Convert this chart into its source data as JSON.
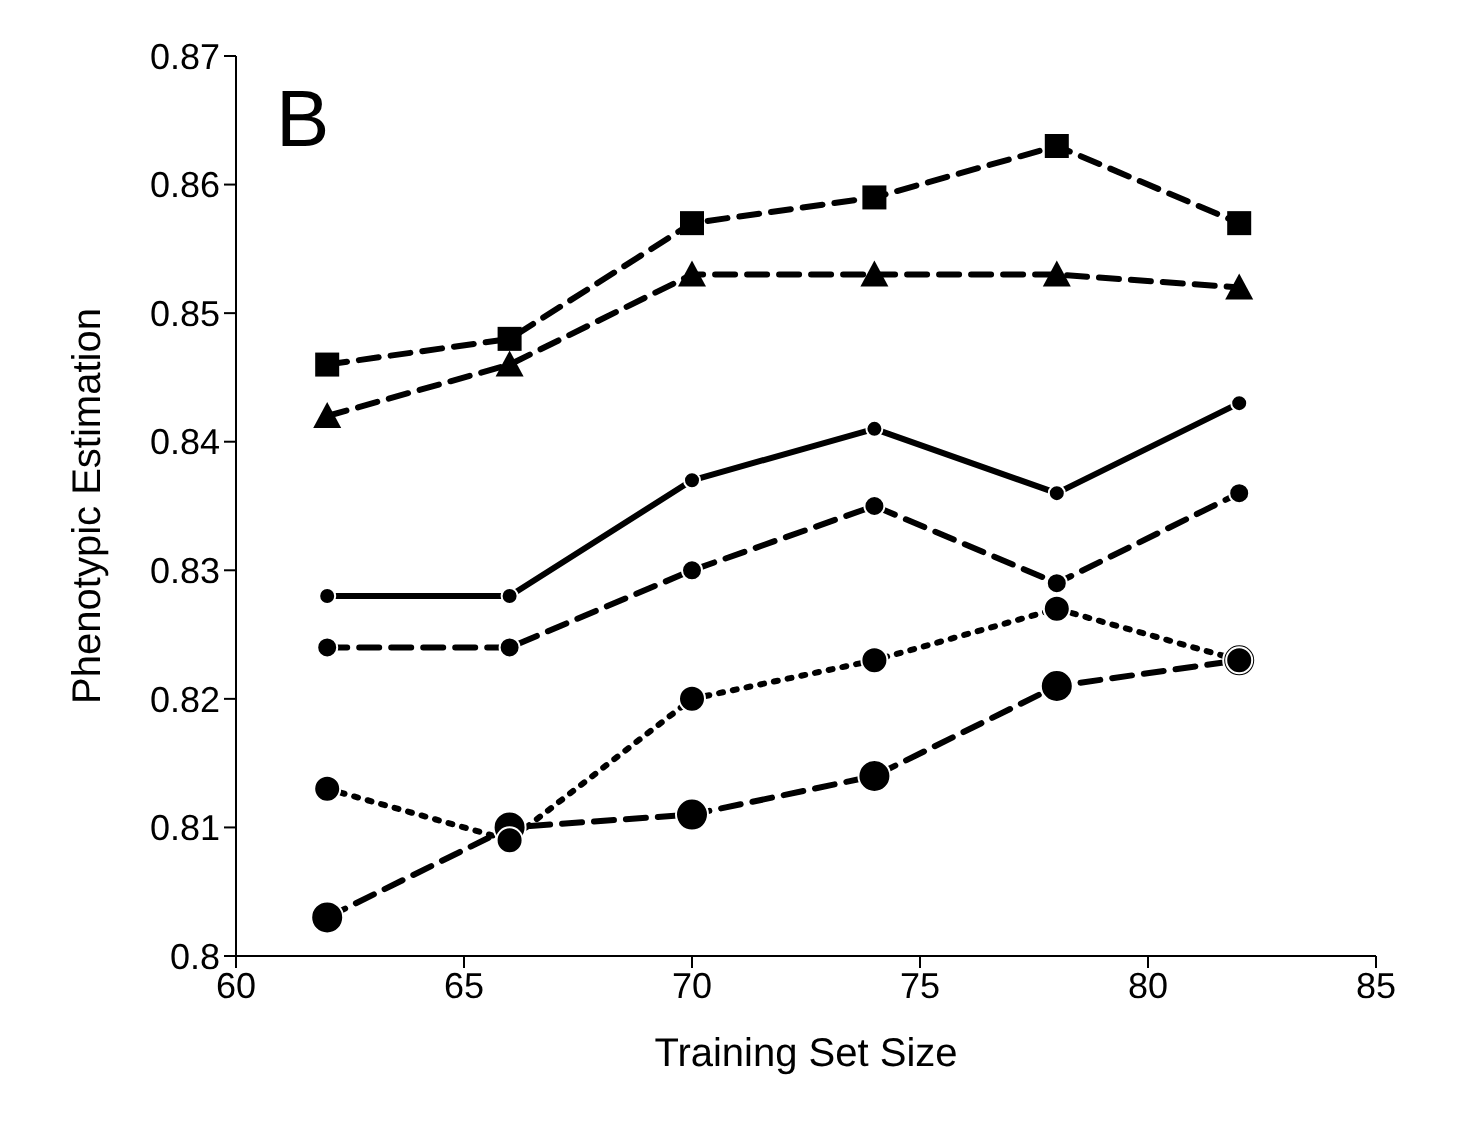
{
  "chart_data": {
    "type": "line",
    "xlabel": "Training Set Size",
    "ylabel": "Phenotypic Estimation",
    "annotations": [
      "B"
    ],
    "x": [
      62,
      66,
      70,
      74,
      78,
      82
    ],
    "xlim": [
      60,
      85
    ],
    "xticks": [
      60,
      65,
      70,
      75,
      80,
      85
    ],
    "ylim": [
      0.8,
      0.87
    ],
    "yticks": [
      0.8,
      0.81,
      0.82,
      0.83,
      0.84,
      0.85,
      0.86,
      0.87
    ],
    "grid": false,
    "legend": false,
    "series": [
      {
        "color": "#000000",
        "marker": "circle",
        "line_style": "dashed",
        "values": [
          0.803,
          0.81,
          0.811,
          0.814,
          0.821,
          0.823
        ]
      },
      {
        "color": "#000000",
        "marker": "circle",
        "line_style": "dotted",
        "values": [
          0.813,
          0.809,
          0.82,
          0.823,
          0.827,
          0.823
        ]
      },
      {
        "color": "#000000",
        "marker": "circle",
        "line_style": "dashed",
        "values": [
          0.824,
          0.824,
          0.83,
          0.835,
          0.829,
          0.836
        ]
      },
      {
        "color": "#000000",
        "marker": "circle",
        "line_style": "solid",
        "values": [
          0.828,
          0.828,
          0.837,
          0.841,
          0.836,
          0.843
        ]
      },
      {
        "color": "#000000",
        "marker": "triangle",
        "line_style": "dashed",
        "values": [
          0.842,
          0.846,
          0.853,
          0.853,
          0.853,
          0.852
        ]
      },
      {
        "color": "#000000",
        "marker": "square",
        "line_style": "dashed",
        "values": [
          0.846,
          0.848,
          0.857,
          0.859,
          0.863,
          0.857
        ]
      }
    ]
  }
}
